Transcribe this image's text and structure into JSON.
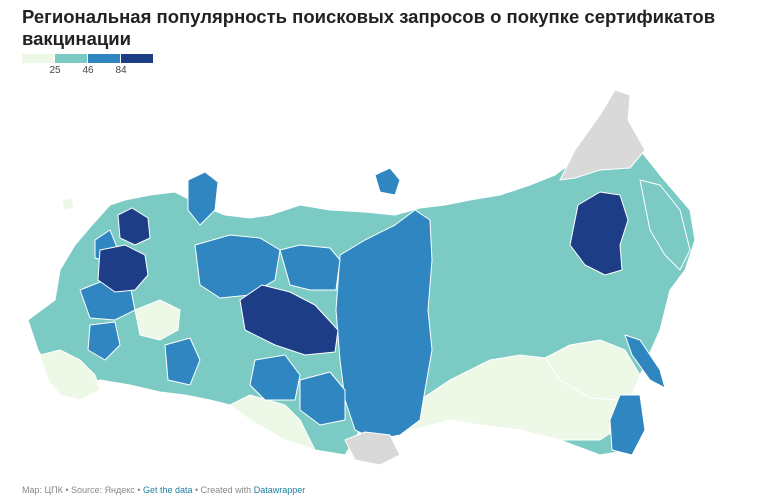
{
  "title": "Региональная популярность поисковых запросов о покупке сертификатов вакцинации",
  "legend": {
    "colors": [
      "#eef8e7",
      "#7bcbc4",
      "#2f86c1",
      "#1e3d87"
    ],
    "labels": [
      "25",
      "46",
      "84"
    ]
  },
  "map": {
    "no_data_color": "#d9d9d9"
  },
  "footer": {
    "credit": "Map: ЦПК • Source: Яндекс • ",
    "get_data": "Get the data",
    "created": " • Created with ",
    "tool": "Datawrapper"
  }
}
